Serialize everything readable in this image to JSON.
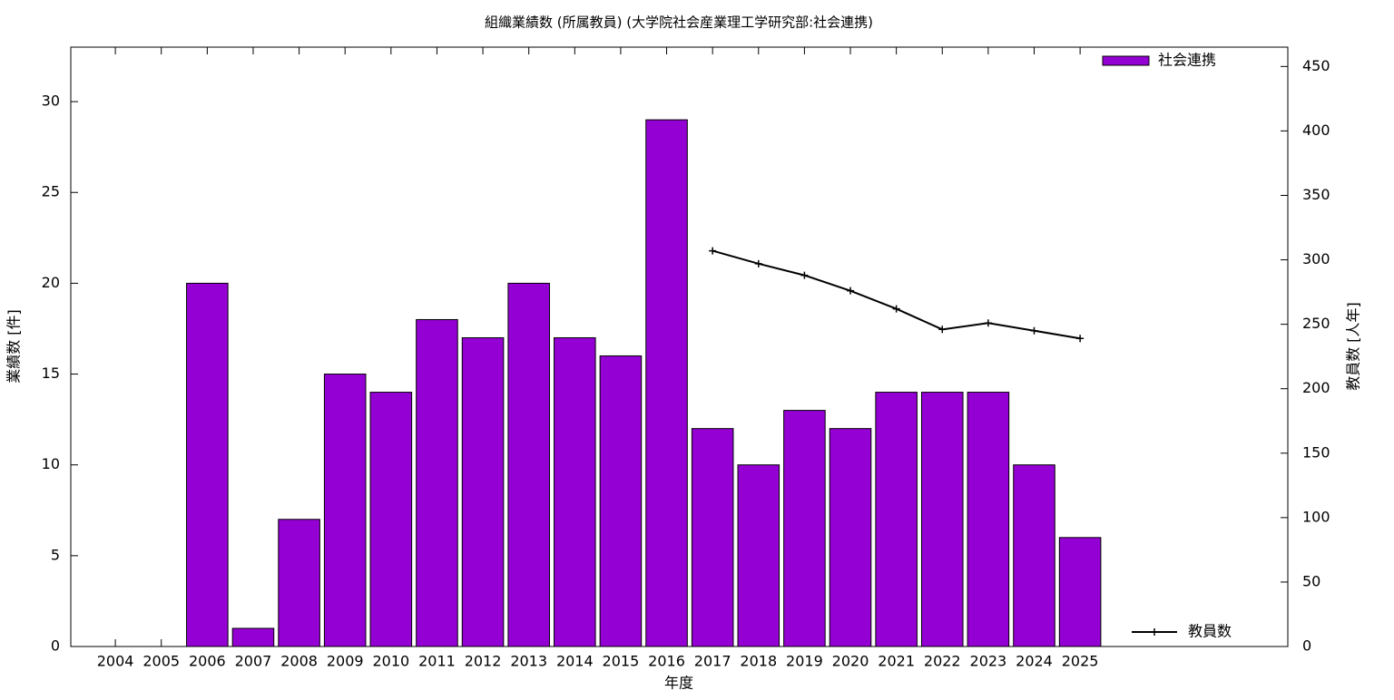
{
  "chart_data": {
    "type": "bar",
    "title": "組織業績数 (所属教員) (大学院社会産業理工学研究部:社会連携)",
    "x_label": "年度",
    "y_label": "業績数 [件]",
    "y2_label": "教員数 [人年]",
    "categories": [
      "2004",
      "2005",
      "2006",
      "2007",
      "2008",
      "2009",
      "2010",
      "2011",
      "2012",
      "2013",
      "2014",
      "2015",
      "2016",
      "2017",
      "2018",
      "2019",
      "2020",
      "2021",
      "2022",
      "2023",
      "2024",
      "2025"
    ],
    "series": [
      {
        "name": "社会連携",
        "color": "#9400d3",
        "type": "bar",
        "legend": "upper right",
        "values": [
          0,
          0,
          20,
          1,
          7,
          15,
          14,
          18,
          17,
          20,
          17,
          16,
          29,
          12,
          10,
          13,
          12,
          14,
          14,
          14,
          10,
          6
        ]
      },
      {
        "name": "教員数",
        "color": "#000000",
        "type": "line",
        "axis": "y2",
        "legend": "lower right",
        "values": [
          null,
          null,
          null,
          null,
          null,
          null,
          null,
          null,
          null,
          null,
          null,
          null,
          null,
          307,
          297,
          288,
          276,
          262,
          246,
          251,
          245,
          239
        ]
      }
    ],
    "ylim": [
      0,
      33
    ],
    "yticks": [
      0,
      5,
      10,
      15,
      20,
      25,
      30
    ],
    "y2lim": [
      0,
      465
    ],
    "y2ticks": [
      0,
      50,
      100,
      150,
      200,
      250,
      300,
      350,
      400,
      450
    ]
  }
}
